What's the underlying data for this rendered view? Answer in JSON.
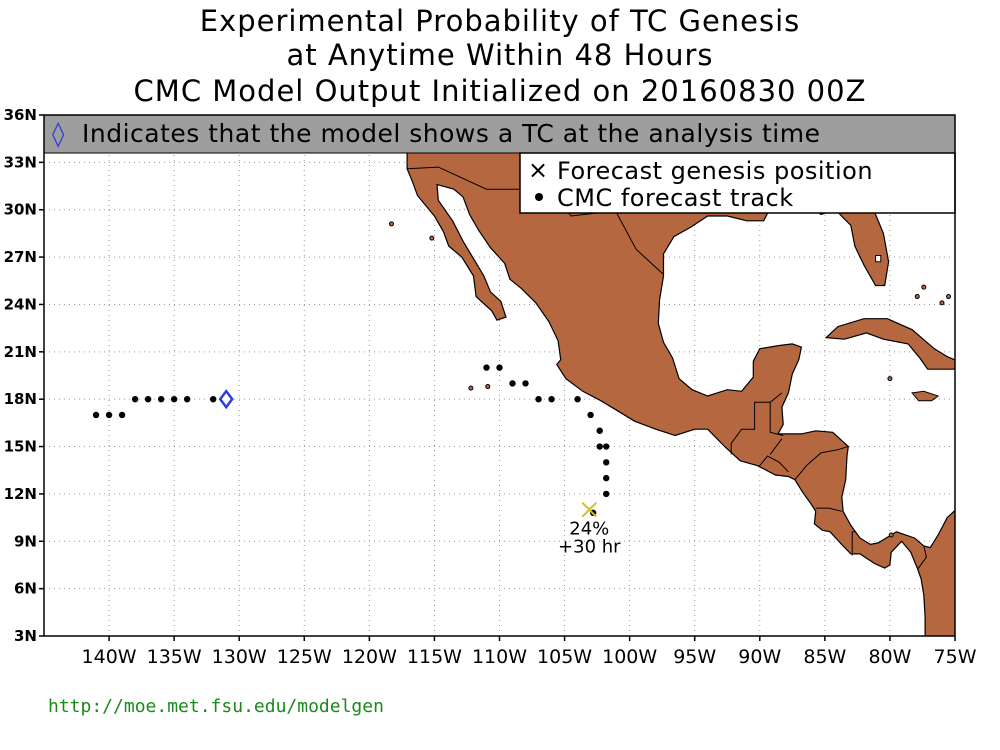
{
  "title": {
    "line1": "Experimental Probability of TC Genesis",
    "line2": "at Anytime Within 48 Hours",
    "line3": "CMC Model Output Initialized on 20160830 00Z"
  },
  "banner": {
    "symbol": "◊",
    "text": "Indicates that the model shows a TC at the analysis time"
  },
  "legend": {
    "genesis_symbol": "×",
    "genesis_label": "Forecast genesis position",
    "track_label": "CMC forecast track"
  },
  "map": {
    "lon_range": [
      -145,
      -75
    ],
    "lat_range": [
      3,
      36
    ],
    "lat_ticks": [
      {
        "value": 36,
        "label": "36N"
      },
      {
        "value": 33,
        "label": "33N"
      },
      {
        "value": 30,
        "label": "30N"
      },
      {
        "value": 27,
        "label": "27N"
      },
      {
        "value": 24,
        "label": "24N"
      },
      {
        "value": 21,
        "label": "21N"
      },
      {
        "value": 18,
        "label": "18N"
      },
      {
        "value": 15,
        "label": "15N"
      },
      {
        "value": 12,
        "label": "12N"
      },
      {
        "value": 9,
        "label": "9N"
      },
      {
        "value": 6,
        "label": "6N"
      },
      {
        "value": 3,
        "label": "3N"
      }
    ],
    "lon_ticks": [
      {
        "value": -140,
        "label": "140W"
      },
      {
        "value": -135,
        "label": "135W"
      },
      {
        "value": -130,
        "label": "130W"
      },
      {
        "value": -125,
        "label": "125W"
      },
      {
        "value": -120,
        "label": "120W"
      },
      {
        "value": -115,
        "label": "115W"
      },
      {
        "value": -110,
        "label": "110W"
      },
      {
        "value": -105,
        "label": "105W"
      },
      {
        "value": -100,
        "label": "100W"
      },
      {
        "value": -95,
        "label": "95W"
      },
      {
        "value": -90,
        "label": "90W"
      },
      {
        "value": -85,
        "label": "85W"
      },
      {
        "value": -80,
        "label": "80W"
      },
      {
        "value": -75,
        "label": "75W"
      }
    ],
    "grid": "dotted",
    "land_color": "#b5683f",
    "ocean_color": "#ffffff",
    "banner_color": "#9e9e9e"
  },
  "tracks": [
    {
      "name": "west-track",
      "points": [
        [
          -141,
          17
        ],
        [
          -140,
          17
        ],
        [
          -139,
          17
        ],
        [
          -138,
          18
        ],
        [
          -137,
          18
        ],
        [
          -136,
          18
        ],
        [
          -135,
          18
        ],
        [
          -134,
          18
        ],
        [
          -132,
          18
        ]
      ],
      "analysis_position": [
        -131,
        18
      ]
    },
    {
      "name": "east-track",
      "points": [
        [
          -102.8,
          10.8
        ],
        [
          -101.8,
          12
        ],
        [
          -101.8,
          13
        ],
        [
          -101.8,
          14
        ],
        [
          -101.8,
          15
        ],
        [
          -102.3,
          15
        ],
        [
          -102.3,
          16
        ],
        [
          -103,
          17
        ],
        [
          -104,
          18
        ],
        [
          -106,
          18
        ],
        [
          -107,
          18
        ],
        [
          -108,
          19
        ],
        [
          -109,
          19
        ],
        [
          -110,
          20
        ],
        [
          -111,
          20
        ]
      ]
    }
  ],
  "genesis": {
    "position": [
      -103.1,
      11
    ],
    "probability": "24%",
    "lead_time": "+30 hr",
    "marker_color": "#d4c020"
  },
  "analysis_marker_color": "#2b3ee0",
  "footer": {
    "url": "http://moe.met.fsu.edu/modelgen"
  }
}
